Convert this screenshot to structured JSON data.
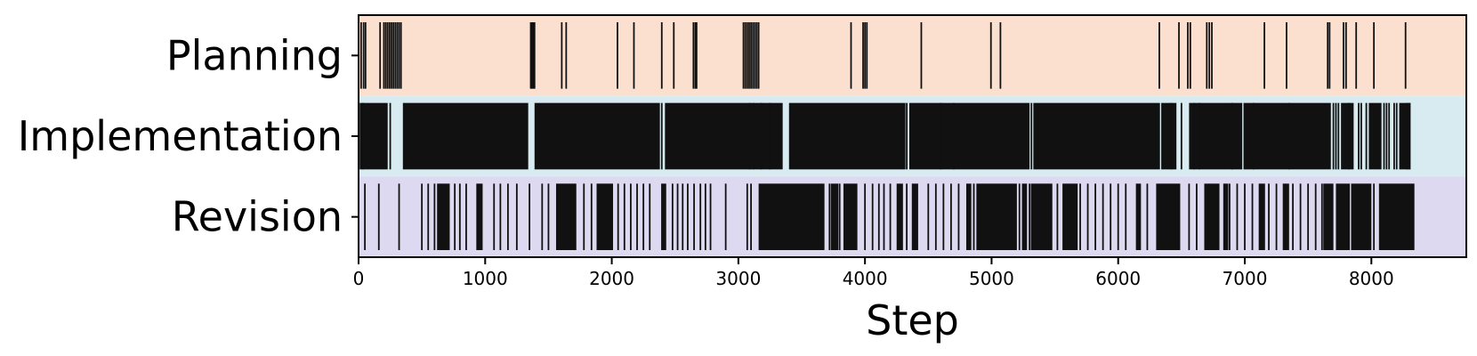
{
  "chart_data": {
    "type": "event-raster",
    "title": "",
    "xlabel": "Step",
    "ylabel": "",
    "xlim": [
      0,
      8750
    ],
    "xticks": [
      0,
      1000,
      2000,
      3000,
      4000,
      5000,
      6000,
      7000,
      8000
    ],
    "xtick_labels": [
      "0",
      "1000",
      "2000",
      "3000",
      "4000",
      "5000",
      "6000",
      "7000",
      "8000"
    ],
    "grid": false,
    "legend": "none",
    "mark_color": "#111111",
    "categories": [
      "Planning",
      "Implementation",
      "Revision"
    ],
    "band_colors": [
      "#fbe0d0",
      "#d8ebf1",
      "#ddd9f0"
    ],
    "series": [
      {
        "name": "Planning",
        "events": [
          20,
          40,
          55,
          170,
          200,
          215,
          230,
          245,
          260,
          275,
          290,
          305,
          320,
          335,
          1360,
          1370,
          1380,
          1390,
          1605,
          1640,
          2045,
          2175,
          2395,
          2490,
          2645,
          2660,
          2670,
          3040,
          3055,
          3070,
          3085,
          3100,
          3115,
          3130,
          3145,
          3160,
          3890,
          3985,
          4000,
          4015,
          4445,
          4995,
          5070,
          6325,
          6480,
          6550,
          6570,
          6700,
          6720,
          6740,
          7155,
          7330,
          7655,
          7670,
          7780,
          7800,
          7880,
          8020,
          8270
        ]
      },
      {
        "name": "Implementation",
        "ranges": [
          [
            20,
            230
          ],
          [
            350,
            1340
          ],
          [
            1390,
            2380
          ],
          [
            2420,
            3350
          ],
          [
            3400,
            4320
          ],
          [
            4350,
            5300
          ],
          [
            5330,
            6330
          ],
          [
            6340,
            6460
          ],
          [
            6560,
            6980
          ],
          [
            6990,
            7680
          ],
          [
            7760,
            7860
          ],
          [
            7980,
            8080
          ],
          [
            8220,
            8310
          ]
        ],
        "events": [
          15,
          35,
          250,
          2395,
          3090,
          3120,
          3180,
          3250,
          4330,
          4600,
          4700,
          5315,
          6420,
          6500,
          6600,
          6640,
          6900,
          7070,
          7350,
          7700,
          7720,
          7740,
          7820,
          7900,
          7920,
          7960,
          8100,
          8120,
          8140,
          8180,
          8200,
          8280,
          8300
        ]
      },
      {
        "name": "Revision",
        "ranges": [
          [
            620,
            720
          ],
          [
            930,
            980
          ],
          [
            1560,
            1720
          ],
          [
            1880,
            2010
          ],
          [
            2390,
            2430
          ],
          [
            3160,
            3680
          ],
          [
            3730,
            3790
          ],
          [
            3830,
            3940
          ],
          [
            4250,
            4300
          ],
          [
            4370,
            4420
          ],
          [
            4800,
            4840
          ],
          [
            4880,
            5200
          ],
          [
            5240,
            5280
          ],
          [
            5310,
            5480
          ],
          [
            5560,
            5680
          ],
          [
            6140,
            6180
          ],
          [
            6300,
            6490
          ],
          [
            6680,
            6800
          ],
          [
            6830,
            6870
          ],
          [
            7110,
            7160
          ],
          [
            7300,
            7350
          ],
          [
            7620,
            7700
          ],
          [
            7720,
            7830
          ],
          [
            7840,
            8000
          ],
          [
            8060,
            8340
          ]
        ],
        "events": [
          50,
          160,
          320,
          500,
          550,
          600,
          760,
          800,
          850,
          1070,
          1120,
          1180,
          1250,
          1350,
          1450,
          1500,
          1780,
          1840,
          2050,
          2100,
          2150,
          2200,
          2250,
          2300,
          2480,
          2520,
          2560,
          2600,
          2650,
          2700,
          2740,
          2780,
          2900,
          3070,
          3100,
          3720,
          3800,
          4000,
          4060,
          4110,
          4150,
          4200,
          4330,
          4500,
          4560,
          4620,
          4680,
          4740,
          4860,
          5220,
          5300,
          5520,
          5700,
          5760,
          5820,
          5880,
          5940,
          6000,
          6060,
          6230,
          6560,
          6620,
          6880,
          6940,
          7000,
          7060,
          7190,
          7250,
          7380,
          7440,
          7500,
          7560,
          7610,
          8020
        ]
      }
    ]
  }
}
